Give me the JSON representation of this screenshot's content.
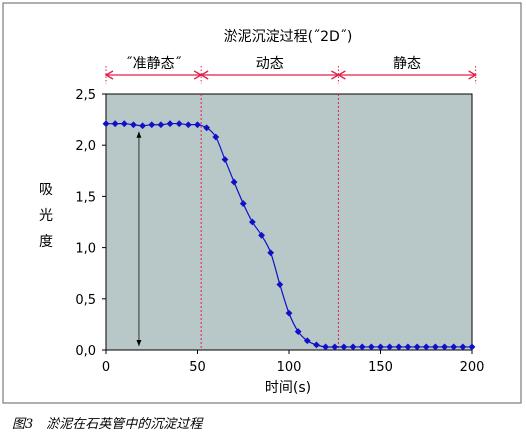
{
  "caption": "图3　淤泥在石英管中的沉淀过程",
  "chart_data": {
    "type": "line",
    "title": "淤泥沉淀过程(˝2D˝)",
    "xlabel": "时间(s)",
    "ylabel": "吸光度",
    "xlim": [
      0,
      200
    ],
    "ylim": [
      0,
      2.5
    ],
    "x_ticks": [
      0,
      50,
      100,
      150,
      200
    ],
    "x_tick_labels": [
      "0",
      "50",
      "100",
      "150",
      "200"
    ],
    "y_ticks": [
      0,
      0.5,
      1.0,
      1.5,
      2.0,
      2.5
    ],
    "y_tick_labels": [
      "0,0",
      "0,5",
      "1,0",
      "1,5",
      "2,0",
      "2,5"
    ],
    "plot_background": "#b8c8c8",
    "grid": false,
    "phases": [
      {
        "label": "˝准静态˝",
        "x_start": 0,
        "x_end": 52
      },
      {
        "label": "动态",
        "x_start": 52,
        "x_end": 127
      },
      {
        "label": "静态",
        "x_start": 127,
        "x_end": 202
      }
    ],
    "phase_color": "#e0204a",
    "marker_x": 18,
    "series": [
      {
        "color": "#1010c8",
        "x": [
          0,
          5,
          10,
          15,
          20,
          25,
          30,
          35,
          40,
          45,
          50,
          55,
          60,
          65,
          70,
          75,
          80,
          85,
          90,
          95,
          100,
          105,
          110,
          115,
          120,
          125,
          130,
          135,
          140,
          145,
          150,
          155,
          160,
          165,
          170,
          175,
          180,
          185,
          190,
          195,
          200
        ],
        "y": [
          2.21,
          2.21,
          2.21,
          2.2,
          2.19,
          2.2,
          2.2,
          2.21,
          2.21,
          2.2,
          2.2,
          2.17,
          2.08,
          1.86,
          1.64,
          1.43,
          1.25,
          1.12,
          0.95,
          0.64,
          0.36,
          0.18,
          0.09,
          0.05,
          0.03,
          0.03,
          0.03,
          0.03,
          0.03,
          0.03,
          0.03,
          0.03,
          0.03,
          0.03,
          0.03,
          0.03,
          0.03,
          0.03,
          0.03,
          0.03,
          0.03
        ]
      }
    ]
  }
}
